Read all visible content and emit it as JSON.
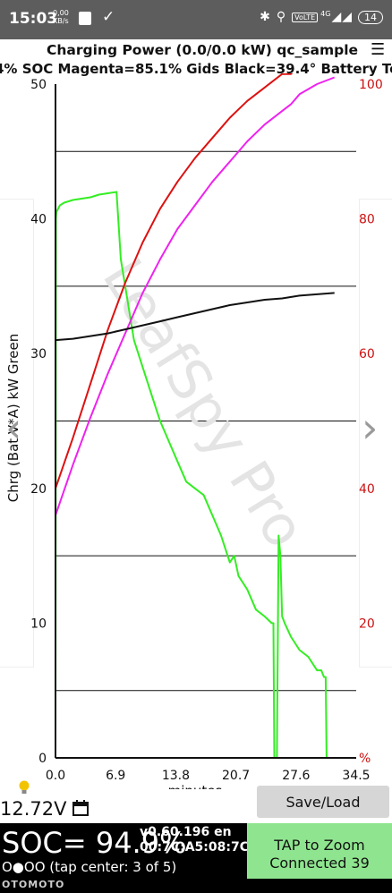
{
  "status_bar": {
    "time": "15:03",
    "speed_value": "0,00",
    "speed_unit": "KB/s",
    "volte_label": "VoLTE",
    "network_label": "4G",
    "battery": "14"
  },
  "header": {
    "title": "Charging Power (0.0/0.0 kW)   qc_sample",
    "menu_icon": "hamburger-menu-icon",
    "subtitle": "4% SOC   Magenta=85.1% Gids   Black=39.4° Battery Temp"
  },
  "chart_data": {
    "type": "line",
    "title": "Charging Power (0.0/0.0 kW)",
    "xlabel": "minutes",
    "ylabel": "Chrg (Bat V*A) kW Green",
    "xlim": [
      0,
      34.5
    ],
    "ylim": [
      0,
      50
    ],
    "y2lim": [
      0,
      100
    ],
    "x_ticks": [
      "0.0",
      "6.9",
      "13.8",
      "20.7",
      "27.6",
      "34.5"
    ],
    "x_tick_values": [
      0,
      6.9,
      13.8,
      20.7,
      27.6,
      34.5
    ],
    "y_ticks": [
      "0",
      "10",
      "20",
      "30",
      "40",
      "50"
    ],
    "y_tick_values": [
      0,
      10,
      20,
      30,
      40,
      50
    ],
    "y2_ticks": [
      "%",
      "20",
      "40",
      "60",
      "80",
      "100"
    ],
    "y2_tick_values": [
      0,
      20,
      40,
      60,
      80,
      100
    ],
    "gridlines_y": [
      5,
      15,
      25,
      35,
      45
    ],
    "watermark": "LeafSpy Pro",
    "series": [
      {
        "axis": "left",
        "color": "#33ee22",
        "x": [
          0,
          0.05,
          0.1,
          0.5,
          1,
          2,
          3,
          4,
          5,
          6,
          7,
          7.5,
          8,
          8.5,
          9,
          10,
          11,
          12,
          13,
          14,
          15,
          16,
          17,
          18,
          19,
          20,
          20.5,
          21,
          21.5,
          22,
          23,
          24,
          24.8,
          25,
          25.1,
          25.4,
          25.6,
          25.8,
          26,
          26.3,
          27,
          28,
          29,
          30,
          30.5,
          30.8,
          31,
          31.1,
          31.3
        ],
        "y": [
          0,
          40,
          40.5,
          41,
          41.2,
          41.4,
          41.5,
          41.6,
          41.8,
          41.9,
          42,
          37,
          35,
          33,
          31,
          29,
          27,
          25,
          23.5,
          22,
          20.5,
          20,
          19.5,
          18,
          16.5,
          14.5,
          15,
          13.5,
          13,
          12.5,
          11,
          10.5,
          10,
          10,
          0,
          0,
          16.5,
          15,
          10.5,
          10,
          9,
          8,
          7.5,
          6.5,
          6.5,
          6,
          6,
          0,
          0
        ]
      },
      {
        "axis": "right",
        "color": "#dd1111",
        "x": [
          0,
          2,
          4,
          6,
          8,
          10,
          12,
          14,
          16,
          18,
          20,
          22,
          24,
          26,
          27,
          28,
          30,
          32
        ],
        "y": [
          40,
          47.5,
          55.5,
          63.5,
          70.5,
          76.5,
          81.5,
          85.5,
          89,
          92,
          95,
          97.5,
          99.5,
          101.5,
          101.5,
          102.5,
          104,
          105
        ]
      },
      {
        "axis": "right",
        "color": "#ee22ee",
        "x": [
          0,
          2,
          4,
          6,
          8,
          10,
          12,
          14,
          16,
          18,
          20,
          22,
          24,
          26,
          27,
          28,
          30,
          32
        ],
        "y": [
          36,
          43.5,
          50.5,
          57,
          63,
          69,
          74,
          78.5,
          82,
          85.5,
          88.5,
          91.5,
          94,
          96,
          97,
          98.5,
          100,
          101
        ]
      },
      {
        "axis": "left",
        "color": "#111111",
        "x": [
          0,
          2,
          4,
          6,
          8,
          10,
          12,
          14,
          16,
          18,
          20,
          22,
          24,
          26,
          28,
          30,
          32
        ],
        "y": [
          31,
          31.1,
          31.3,
          31.5,
          31.8,
          32.1,
          32.4,
          32.7,
          33,
          33.3,
          33.6,
          33.8,
          34,
          34.1,
          34.3,
          34.4,
          34.5
        ]
      }
    ]
  },
  "bottom": {
    "voltage": "12.72V",
    "bulb_icon": "lightbulb-icon",
    "calendar_icon": "calendar-icon",
    "save_load_label": "Save/Load",
    "soc": "SOC= 94.9%",
    "tap_info": "O●OO (tap center: 3 of 5)",
    "version_line1": "v0.60.196 en",
    "version_line2": "00:7C:A5:08:7C:F",
    "tap_zoom_label": "TAP to Zoom",
    "connected_label": "Connected 39",
    "brand": "OTOMOTO"
  }
}
